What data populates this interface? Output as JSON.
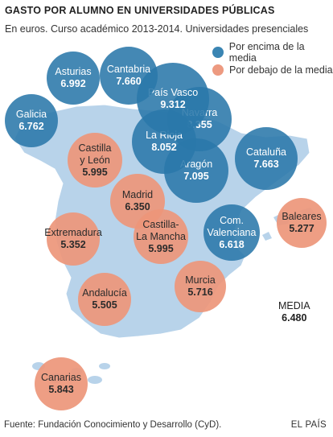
{
  "header": {
    "title": "GASTO POR ALUMNO EN UNIVERSIDADES PÚBLICAS",
    "subtitle": "En euros. Curso académico 2013-2014. Universidades presenciales"
  },
  "legend": {
    "above": {
      "label": "Por encima de la media",
      "color": "#3a85b3"
    },
    "below": {
      "label": "Por debajo de la media",
      "color": "#ed9a80"
    }
  },
  "regions": [
    {
      "key": "asturias",
      "name": "Asturias",
      "value": "6.992",
      "group": "above"
    },
    {
      "key": "cantabria",
      "name": "Cantabria",
      "value": "7.660",
      "group": "above"
    },
    {
      "key": "galicia",
      "name": "Galicia",
      "value": "6.762",
      "group": "above"
    },
    {
      "key": "pais-vasco",
      "name": "País Vasco",
      "value": "9.312",
      "group": "above"
    },
    {
      "key": "navarra",
      "name": "Navarra",
      "value": "8.355",
      "group": "above"
    },
    {
      "key": "la-rioja",
      "name": "La Rioja",
      "value": "8.052",
      "group": "above"
    },
    {
      "key": "aragon",
      "name": "Aragón",
      "value": "7.095",
      "group": "above"
    },
    {
      "key": "cataluna",
      "name": "Cataluña",
      "value": "7.663",
      "group": "above"
    },
    {
      "key": "castilla-leon",
      "name": "Castilla\ny León",
      "value": "5.995",
      "group": "below"
    },
    {
      "key": "madrid",
      "name": "Madrid",
      "value": "6.350",
      "group": "below"
    },
    {
      "key": "extremadura",
      "name": "Extremadura",
      "value": "5.352",
      "group": "below"
    },
    {
      "key": "castilla-la-mancha",
      "name": "Castilla-\nLa Mancha",
      "value": "5.995",
      "group": "below"
    },
    {
      "key": "com-valenciana",
      "name": "Com.\nValenciana",
      "value": "6.618",
      "group": "above"
    },
    {
      "key": "baleares",
      "name": "Baleares",
      "value": "5.277",
      "group": "below"
    },
    {
      "key": "murcia",
      "name": "Murcia",
      "value": "5.716",
      "group": "below"
    },
    {
      "key": "andalucia",
      "name": "Andalucía",
      "value": "5.505",
      "group": "below"
    },
    {
      "key": "canarias",
      "name": "Canarias",
      "value": "5.843",
      "group": "below"
    }
  ],
  "media": {
    "label": "MEDIA",
    "value": "6.480"
  },
  "footer": {
    "source": "Fuente: Fundación Conocimiento y Desarrollo (CyD).",
    "brand": "EL PAÍS"
  }
}
